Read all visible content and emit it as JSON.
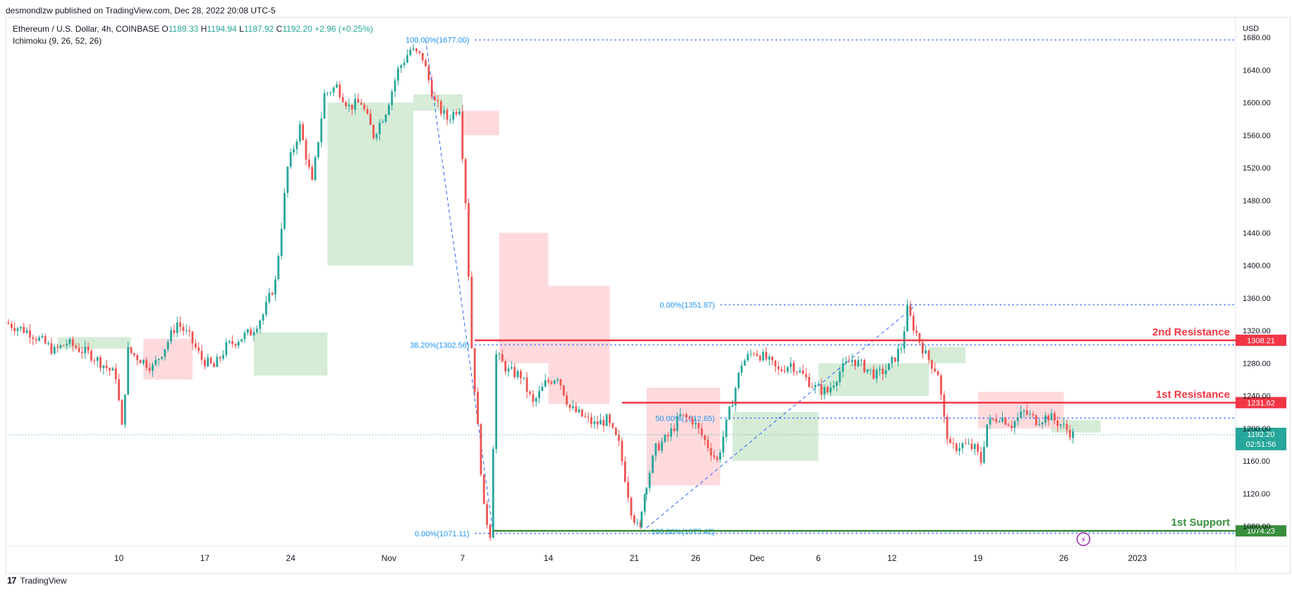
{
  "header": {
    "published": "desmondlzw published on TradingView.com, Dec 28, 2022 20:08 UTC-5"
  },
  "legend": {
    "symbol": "Ethereum / U.S. Dollar, 4h, COINBASE",
    "open_label": "O",
    "open": "1189.33",
    "high_label": "H",
    "high": "1194.94",
    "low_label": "L",
    "low": "1187.92",
    "close_label": "C",
    "close": "1192.20",
    "change": "+2.96 (+0.25%)",
    "indicator": "Ichimoku (9, 26, 52, 26)"
  },
  "footer": {
    "brand": "TradingView"
  },
  "colors": {
    "up": "#26a69a",
    "down": "#ef5350",
    "resistance": "#f23645",
    "support": "#388e3c",
    "fib": "#2962ff",
    "fib_text": "#2196f3",
    "cloud_bull": "#c8e6c9",
    "cloud_bear": "#ffcdd2"
  },
  "chart_data": {
    "type": "candlestick",
    "title": "Ethereum / U.S. Dollar, 4h, COINBASE",
    "currency": "USD",
    "y_axis_side": "right",
    "ylim": [
      1058,
      1700
    ],
    "y_ticks": [
      1080,
      1120,
      1160,
      1200,
      1240,
      1280,
      1320,
      1360,
      1400,
      1440,
      1480,
      1520,
      1560,
      1600,
      1640,
      1680
    ],
    "y_tick_labels": [
      "1080.00",
      "1120.00",
      "1160.00",
      "1200.00",
      "1240.00",
      "1280.00",
      "1320.00",
      "1360.00",
      "1400.00",
      "1440.00",
      "1480.00",
      "1520.00",
      "1560.00",
      "1600.00",
      "1640.00",
      "1680.00"
    ],
    "x_range_days": [
      0,
      87
    ],
    "x_ticks": [
      {
        "label": "10",
        "day": 9
      },
      {
        "label": "17",
        "day": 16
      },
      {
        "label": "24",
        "day": 23
      },
      {
        "label": "Nov",
        "day": 31
      },
      {
        "label": "7",
        "day": 37
      },
      {
        "label": "14",
        "day": 44
      },
      {
        "label": "21",
        "day": 51
      },
      {
        "label": "26",
        "day": 56
      },
      {
        "label": "Dec",
        "day": 61
      },
      {
        "label": "6",
        "day": 66
      },
      {
        "label": "12",
        "day": 72
      },
      {
        "label": "19",
        "day": 79
      },
      {
        "label": "26",
        "day": 86
      },
      {
        "label": "2023",
        "day": 92
      }
    ],
    "price_path": [
      {
        "day": 0,
        "price": 1330
      },
      {
        "day": 2,
        "price": 1318
      },
      {
        "day": 4,
        "price": 1295
      },
      {
        "day": 5,
        "price": 1305
      },
      {
        "day": 7,
        "price": 1290
      },
      {
        "day": 8,
        "price": 1278
      },
      {
        "day": 9,
        "price": 1265
      },
      {
        "day": 9.5,
        "price": 1200
      },
      {
        "day": 10,
        "price": 1295
      },
      {
        "day": 11,
        "price": 1285
      },
      {
        "day": 12,
        "price": 1275
      },
      {
        "day": 13,
        "price": 1300
      },
      {
        "day": 14,
        "price": 1330
      },
      {
        "day": 15,
        "price": 1312
      },
      {
        "day": 16,
        "price": 1285
      },
      {
        "day": 17,
        "price": 1275
      },
      {
        "day": 18,
        "price": 1300
      },
      {
        "day": 19,
        "price": 1310
      },
      {
        "day": 20,
        "price": 1318
      },
      {
        "day": 21,
        "price": 1340
      },
      {
        "day": 22,
        "price": 1380
      },
      {
        "day": 23,
        "price": 1520
      },
      {
        "day": 24,
        "price": 1570
      },
      {
        "day": 25,
        "price": 1500
      },
      {
        "day": 26,
        "price": 1610
      },
      {
        "day": 27,
        "price": 1620
      },
      {
        "day": 28,
        "price": 1595
      },
      {
        "day": 29,
        "price": 1600
      },
      {
        "day": 30,
        "price": 1560
      },
      {
        "day": 31,
        "price": 1590
      },
      {
        "day": 32,
        "price": 1640
      },
      {
        "day": 33,
        "price": 1665
      },
      {
        "day": 34,
        "price": 1655
      },
      {
        "day": 35,
        "price": 1600
      },
      {
        "day": 36,
        "price": 1580
      },
      {
        "day": 37,
        "price": 1595
      },
      {
        "day": 37.5,
        "price": 1480
      },
      {
        "day": 38,
        "price": 1300
      },
      {
        "day": 39,
        "price": 1100
      },
      {
        "day": 39.5,
        "price": 1071
      },
      {
        "day": 40,
        "price": 1290
      },
      {
        "day": 41,
        "price": 1270
      },
      {
        "day": 42,
        "price": 1265
      },
      {
        "day": 43,
        "price": 1230
      },
      {
        "day": 44,
        "price": 1255
      },
      {
        "day": 45,
        "price": 1265
      },
      {
        "day": 46,
        "price": 1225
      },
      {
        "day": 47,
        "price": 1215
      },
      {
        "day": 48,
        "price": 1205
      },
      {
        "day": 49,
        "price": 1210
      },
      {
        "day": 50,
        "price": 1180
      },
      {
        "day": 51,
        "price": 1100
      },
      {
        "day": 51.6,
        "price": 1075
      },
      {
        "day": 52,
        "price": 1120
      },
      {
        "day": 53,
        "price": 1175
      },
      {
        "day": 54,
        "price": 1190
      },
      {
        "day": 55,
        "price": 1215
      },
      {
        "day": 56,
        "price": 1210
      },
      {
        "day": 57,
        "price": 1185
      },
      {
        "day": 58,
        "price": 1160
      },
      {
        "day": 59,
        "price": 1220
      },
      {
        "day": 60,
        "price": 1280
      },
      {
        "day": 61,
        "price": 1295
      },
      {
        "day": 62,
        "price": 1285
      },
      {
        "day": 63,
        "price": 1270
      },
      {
        "day": 64,
        "price": 1280
      },
      {
        "day": 65,
        "price": 1265
      },
      {
        "day": 66,
        "price": 1250
      },
      {
        "day": 67,
        "price": 1245
      },
      {
        "day": 68,
        "price": 1270
      },
      {
        "day": 69,
        "price": 1285
      },
      {
        "day": 70,
        "price": 1275
      },
      {
        "day": 71,
        "price": 1265
      },
      {
        "day": 72,
        "price": 1275
      },
      {
        "day": 73,
        "price": 1300
      },
      {
        "day": 73.5,
        "price": 1345
      },
      {
        "day": 74,
        "price": 1325
      },
      {
        "day": 75,
        "price": 1290
      },
      {
        "day": 76,
        "price": 1268
      },
      {
        "day": 76.5,
        "price": 1210
      },
      {
        "day": 77,
        "price": 1175
      },
      {
        "day": 78,
        "price": 1180
      },
      {
        "day": 79,
        "price": 1175
      },
      {
        "day": 79.5,
        "price": 1160
      },
      {
        "day": 80,
        "price": 1205
      },
      {
        "day": 81,
        "price": 1215
      },
      {
        "day": 82,
        "price": 1205
      },
      {
        "day": 83,
        "price": 1220
      },
      {
        "day": 84,
        "price": 1210
      },
      {
        "day": 85,
        "price": 1215
      },
      {
        "day": 86,
        "price": 1205
      },
      {
        "day": 87,
        "price": 1192
      }
    ],
    "cloud_bull_segments": [
      {
        "day_start": 4,
        "day_end": 10,
        "top": 1312,
        "bottom": 1298
      },
      {
        "day_start": 20,
        "day_end": 26,
        "top": 1318,
        "bottom": 1265
      },
      {
        "day_start": 26,
        "day_end": 33,
        "top": 1600,
        "bottom": 1400
      },
      {
        "day_start": 33,
        "day_end": 37,
        "top": 1610,
        "bottom": 1590
      },
      {
        "day_start": 59,
        "day_end": 66,
        "top": 1220,
        "bottom": 1160
      },
      {
        "day_start": 66,
        "day_end": 75,
        "top": 1280,
        "bottom": 1240
      },
      {
        "day_start": 75,
        "day_end": 78,
        "top": 1300,
        "bottom": 1280
      },
      {
        "day_start": 85,
        "day_end": 89,
        "top": 1210,
        "bottom": 1195
      }
    ],
    "cloud_bear_segments": [
      {
        "day_start": 11,
        "day_end": 15,
        "top": 1310,
        "bottom": 1260
      },
      {
        "day_start": 37,
        "day_end": 40,
        "top": 1590,
        "bottom": 1560
      },
      {
        "day_start": 40,
        "day_end": 44,
        "top": 1440,
        "bottom": 1280
      },
      {
        "day_start": 44,
        "day_end": 49,
        "top": 1375,
        "bottom": 1230
      },
      {
        "day_start": 52,
        "day_end": 58,
        "top": 1250,
        "bottom": 1130
      },
      {
        "day_start": 79,
        "day_end": 86,
        "top": 1245,
        "bottom": 1200
      }
    ],
    "levels": [
      {
        "name": "2nd Resistance",
        "price": 1308.21,
        "label": "1308.21",
        "color": "resistance",
        "day_start": 38
      },
      {
        "name": "1st Resistance",
        "price": 1231.62,
        "label": "1231.62",
        "color": "resistance",
        "day_start": 50
      },
      {
        "name": "1st Support",
        "price": 1074.23,
        "label": "1074.23",
        "color": "support",
        "day_start": 39.5
      }
    ],
    "level_labels": {
      "r2": "2nd Resistance",
      "r1": "1st Resistance",
      "s1": "1st Support"
    },
    "fib_levels": [
      {
        "text": "100.00%(1677.00)",
        "price": 1677.0,
        "day_start": 34
      },
      {
        "text": "38.20%(1302.56)",
        "price": 1302.56,
        "day_start": 34
      },
      {
        "text": "0.00%(1071.11)",
        "price": 1071.11,
        "day_start": 34
      },
      {
        "text": "0.00%(1351.87)",
        "price": 1351.87,
        "day_start": 54
      },
      {
        "text": "50.00%(1212.65)",
        "price": 1212.65,
        "day_start": 54
      },
      {
        "text": "100.00%(1073.42)",
        "price": 1073.42,
        "day_start": 54
      }
    ],
    "fib_trendlines": [
      {
        "from_day": 34,
        "from_price": 1677,
        "to_day": 39.5,
        "to_price": 1071
      },
      {
        "from_day": 51.6,
        "from_price": 1073,
        "to_day": 74,
        "to_price": 1352
      }
    ],
    "last_price": {
      "price": 1192.2,
      "label": "1192.20",
      "countdown": "02:51:56"
    }
  }
}
